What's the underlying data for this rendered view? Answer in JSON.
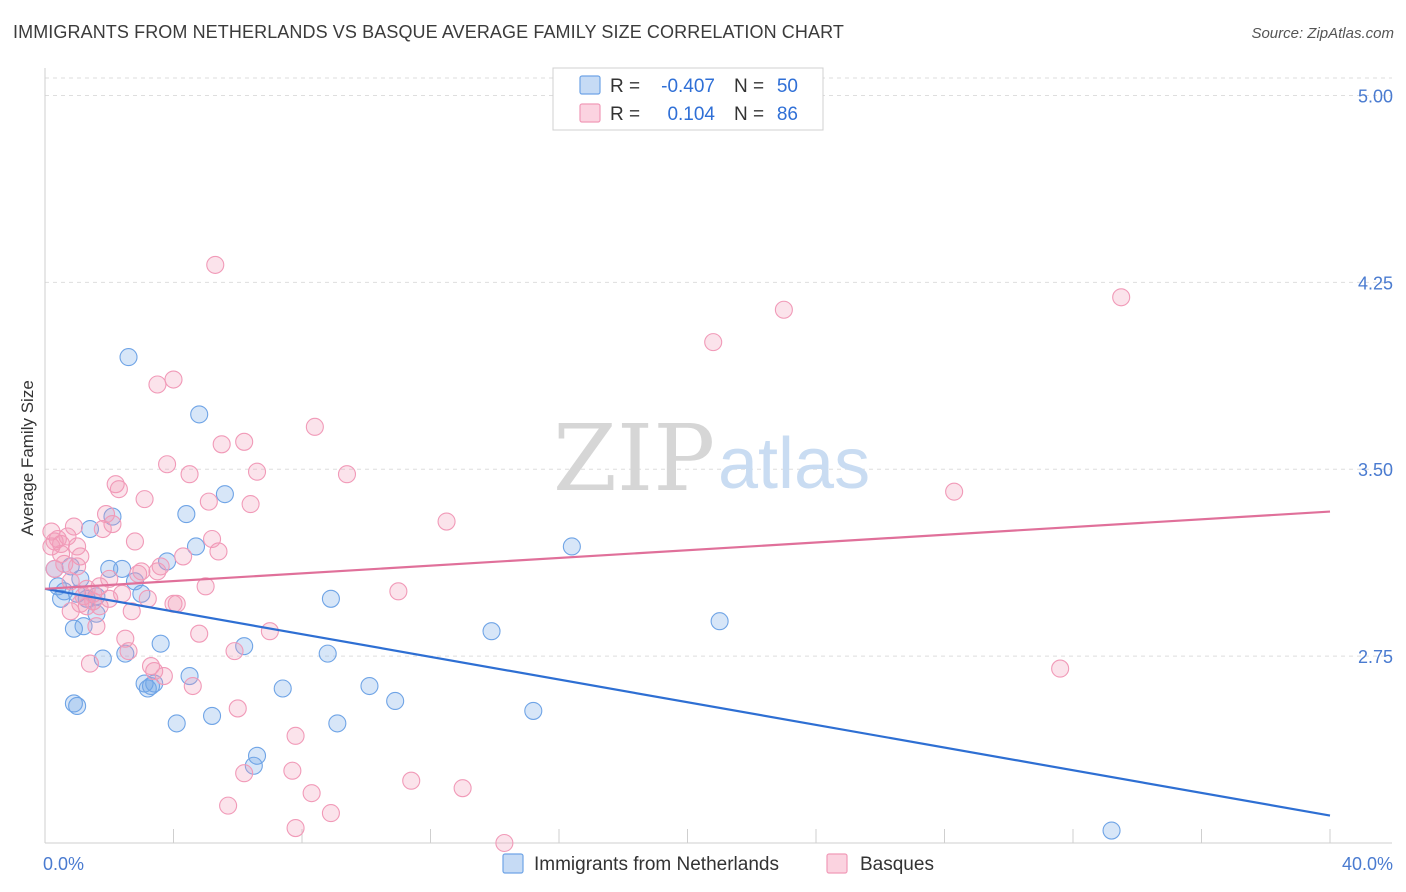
{
  "title": "IMMIGRANTS FROM NETHERLANDS VS BASQUE AVERAGE FAMILY SIZE CORRELATION CHART",
  "source": "Source: ZipAtlas.com",
  "watermark": {
    "zip": "ZIP",
    "atlas": "atlas"
  },
  "legend": {
    "rows": [
      {
        "r_label": "R =",
        "r_value": "-0.407",
        "n_label": "N =",
        "n_value": "50",
        "color": "#6fa4e6"
      },
      {
        "r_label": "R =",
        "r_value": "0.104",
        "n_label": "N =",
        "n_value": "86",
        "color": "#f19ab8"
      }
    ]
  },
  "bottom_legend": [
    {
      "label": "Immigrants from Netherlands",
      "color": "#6fa4e6"
    },
    {
      "label": "Basques",
      "color": "#f19ab8"
    }
  ],
  "chart_data": {
    "type": "scatter",
    "title": "IMMIGRANTS FROM NETHERLANDS VS BASQUE AVERAGE FAMILY SIZE CORRELATION CHART",
    "xlabel": "",
    "ylabel": "Average Family Size",
    "xlim": [
      0,
      40
    ],
    "ylim": [
      2.0,
      5.07
    ],
    "x_ticks": [
      {
        "value": 0,
        "label": "0.0%"
      },
      {
        "value": 40,
        "label": "40.0%"
      }
    ],
    "y_ticks": [
      {
        "value": 2.75,
        "label": "2.75"
      },
      {
        "value": 3.5,
        "label": "3.50"
      },
      {
        "value": 4.25,
        "label": "4.25"
      },
      {
        "value": 5.0,
        "label": "5.00"
      }
    ],
    "colors": {
      "netherlands": "#6fa4e6",
      "basques": "#f19ab8",
      "netherlands_line": "#2e6fd3",
      "basques_line": "#e0709a"
    },
    "series": [
      {
        "name": "Immigrants from Netherlands",
        "trend": {
          "x": [
            0,
            40
          ],
          "y": [
            3.02,
            2.11
          ]
        },
        "points": [
          [
            0.3,
            3.1
          ],
          [
            0.4,
            3.03
          ],
          [
            0.5,
            2.98
          ],
          [
            0.6,
            3.01
          ],
          [
            0.8,
            3.11
          ],
          [
            0.9,
            2.86
          ],
          [
            1.0,
            3.0
          ],
          [
            1.1,
            3.06
          ],
          [
            1.2,
            2.87
          ],
          [
            1.3,
            2.98
          ],
          [
            1.4,
            3.26
          ],
          [
            1.6,
            2.92
          ],
          [
            1.8,
            2.74
          ],
          [
            2.0,
            3.1
          ],
          [
            2.1,
            3.31
          ],
          [
            2.4,
            3.1
          ],
          [
            2.5,
            2.76
          ],
          [
            2.6,
            3.95
          ],
          [
            2.8,
            3.05
          ],
          [
            3.0,
            3.0
          ],
          [
            3.1,
            2.64
          ],
          [
            3.2,
            2.62
          ],
          [
            3.4,
            2.64
          ],
          [
            3.6,
            2.8
          ],
          [
            3.8,
            3.13
          ],
          [
            4.1,
            2.48
          ],
          [
            4.4,
            3.32
          ],
          [
            4.5,
            2.67
          ],
          [
            4.7,
            3.19
          ],
          [
            4.8,
            3.72
          ],
          [
            5.2,
            2.51
          ],
          [
            5.6,
            3.4
          ],
          [
            6.2,
            2.79
          ],
          [
            6.5,
            2.31
          ],
          [
            6.6,
            2.35
          ],
          [
            7.4,
            2.62
          ],
          [
            8.8,
            2.76
          ],
          [
            8.9,
            2.98
          ],
          [
            9.1,
            2.48
          ],
          [
            10.1,
            2.63
          ],
          [
            10.9,
            2.57
          ],
          [
            13.9,
            2.85
          ],
          [
            15.2,
            2.53
          ],
          [
            16.4,
            3.19
          ],
          [
            21.0,
            2.89
          ],
          [
            33.2,
            2.05
          ],
          [
            1.0,
            2.55
          ],
          [
            0.9,
            2.56
          ],
          [
            3.3,
            2.63
          ],
          [
            1.6,
            2.99
          ]
        ]
      },
      {
        "name": "Basques",
        "trend": {
          "x": [
            0,
            40
          ],
          "y": [
            3.02,
            3.33
          ]
        },
        "points": [
          [
            0.2,
            3.25
          ],
          [
            0.2,
            3.19
          ],
          [
            0.3,
            3.1
          ],
          [
            0.4,
            3.22
          ],
          [
            0.5,
            3.2
          ],
          [
            0.7,
            3.23
          ],
          [
            0.8,
            3.05
          ],
          [
            0.8,
            2.93
          ],
          [
            0.9,
            3.27
          ],
          [
            1.0,
            3.11
          ],
          [
            1.0,
            3.19
          ],
          [
            1.1,
            3.15
          ],
          [
            1.2,
            2.99
          ],
          [
            1.3,
            2.95
          ],
          [
            1.4,
            2.72
          ],
          [
            1.5,
            2.97
          ],
          [
            1.6,
            2.87
          ],
          [
            1.7,
            3.03
          ],
          [
            1.8,
            3.26
          ],
          [
            1.9,
            3.32
          ],
          [
            2.0,
            2.98
          ],
          [
            2.1,
            3.28
          ],
          [
            2.2,
            3.44
          ],
          [
            2.3,
            3.42
          ],
          [
            2.5,
            2.82
          ],
          [
            2.6,
            2.77
          ],
          [
            2.7,
            2.93
          ],
          [
            2.8,
            3.21
          ],
          [
            3.0,
            3.09
          ],
          [
            3.1,
            3.38
          ],
          [
            3.2,
            2.98
          ],
          [
            3.3,
            2.71
          ],
          [
            3.5,
            3.84
          ],
          [
            3.6,
            3.11
          ],
          [
            3.7,
            2.67
          ],
          [
            3.8,
            3.52
          ],
          [
            4.0,
            3.86
          ],
          [
            4.1,
            2.96
          ],
          [
            4.3,
            3.15
          ],
          [
            4.5,
            3.48
          ],
          [
            4.6,
            2.63
          ],
          [
            4.8,
            2.84
          ],
          [
            5.0,
            3.03
          ],
          [
            5.1,
            3.37
          ],
          [
            5.2,
            3.22
          ],
          [
            5.3,
            4.32
          ],
          [
            5.4,
            3.17
          ],
          [
            5.5,
            3.6
          ],
          [
            5.7,
            2.15
          ],
          [
            5.9,
            2.77
          ],
          [
            6.0,
            2.54
          ],
          [
            6.2,
            3.61
          ],
          [
            6.2,
            2.28
          ],
          [
            6.4,
            3.36
          ],
          [
            6.6,
            3.49
          ],
          [
            7.0,
            2.85
          ],
          [
            7.7,
            2.29
          ],
          [
            7.8,
            2.43
          ],
          [
            7.8,
            2.06
          ],
          [
            8.3,
            2.2
          ],
          [
            8.4,
            3.67
          ],
          [
            8.9,
            2.12
          ],
          [
            9.4,
            3.48
          ],
          [
            11.0,
            3.01
          ],
          [
            11.4,
            2.25
          ],
          [
            12.5,
            3.29
          ],
          [
            13.0,
            2.22
          ],
          [
            14.3,
            2.0
          ],
          [
            20.8,
            4.01
          ],
          [
            23.0,
            4.14
          ],
          [
            28.3,
            3.41
          ],
          [
            31.6,
            2.7
          ],
          [
            33.5,
            4.19
          ],
          [
            0.3,
            3.21
          ],
          [
            0.6,
            3.12
          ],
          [
            1.3,
            3.02
          ],
          [
            2.4,
            3.0
          ],
          [
            3.4,
            2.69
          ],
          [
            2.0,
            3.06
          ],
          [
            1.5,
            3.0
          ],
          [
            2.9,
            3.08
          ],
          [
            4.0,
            2.96
          ],
          [
            0.5,
            3.16
          ],
          [
            1.1,
            2.96
          ],
          [
            3.5,
            3.09
          ],
          [
            1.7,
            2.95
          ]
        ]
      }
    ]
  }
}
